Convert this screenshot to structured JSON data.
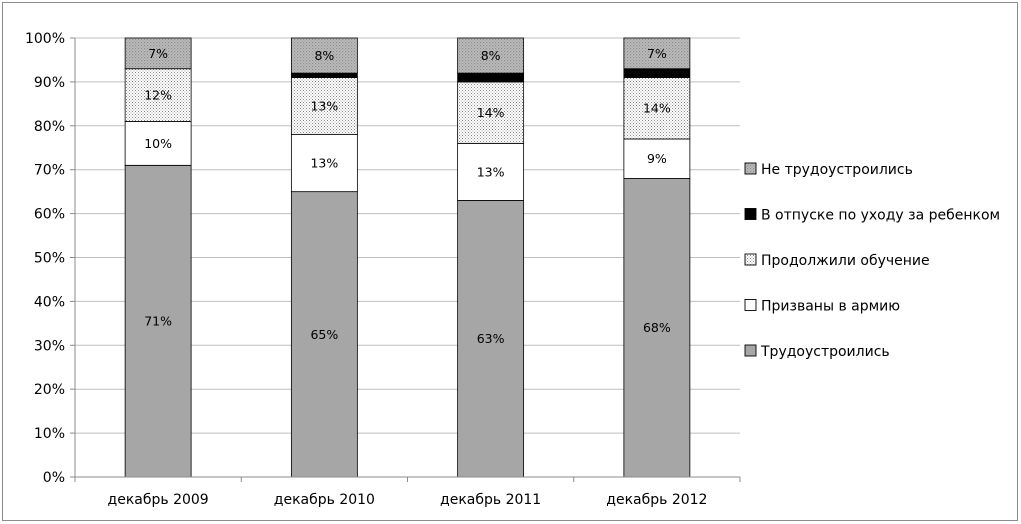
{
  "chart_data": {
    "type": "bar",
    "stacked": true,
    "title": "",
    "xlabel": "",
    "ylabel": "",
    "ylim": [
      0,
      100
    ],
    "y_ticks": [
      "0%",
      "10%",
      "20%",
      "30%",
      "40%",
      "50%",
      "60%",
      "70%",
      "80%",
      "90%",
      "100%"
    ],
    "categories": [
      "декабрь 2009",
      "декабрь 2010",
      "декабрь 2011",
      "декабрь 2012"
    ],
    "series": [
      {
        "name": "Трудоустроились",
        "values": [
          71,
          65,
          63,
          68
        ],
        "labels": [
          "71%",
          "65%",
          "63%",
          "68%"
        ],
        "color": "#a6a6a6",
        "pattern": "solid"
      },
      {
        "name": "Призваны в армию",
        "values": [
          10,
          13,
          13,
          9
        ],
        "labels": [
          "10%",
          "13%",
          "13%",
          "9%"
        ],
        "color": "#ffffff",
        "pattern": "solid"
      },
      {
        "name": "Продолжили обучение",
        "values": [
          12,
          13,
          14,
          14
        ],
        "labels": [
          "12%",
          "13%",
          "14%",
          "14%"
        ],
        "color": "#ffffff",
        "pattern": "dots"
      },
      {
        "name": "В отпуске по уходу за ребенком",
        "values": [
          0,
          1,
          2,
          2
        ],
        "labels": [
          "",
          "",
          "",
          ""
        ],
        "color": "#000000",
        "pattern": "solid"
      },
      {
        "name": "Не трудоустроились",
        "values": [
          7,
          8,
          8,
          7
        ],
        "labels": [
          "7%",
          "8%",
          "8%",
          "7%"
        ],
        "color": "#b3b3b3",
        "pattern": "dots"
      }
    ],
    "legend": {
      "placement": "right",
      "order": [
        "Не трудоустроились",
        "В отпуске по уходу за ребенком",
        "Продолжили обучение",
        "Призваны в армию",
        "Трудоустроились"
      ]
    },
    "grid": true
  }
}
